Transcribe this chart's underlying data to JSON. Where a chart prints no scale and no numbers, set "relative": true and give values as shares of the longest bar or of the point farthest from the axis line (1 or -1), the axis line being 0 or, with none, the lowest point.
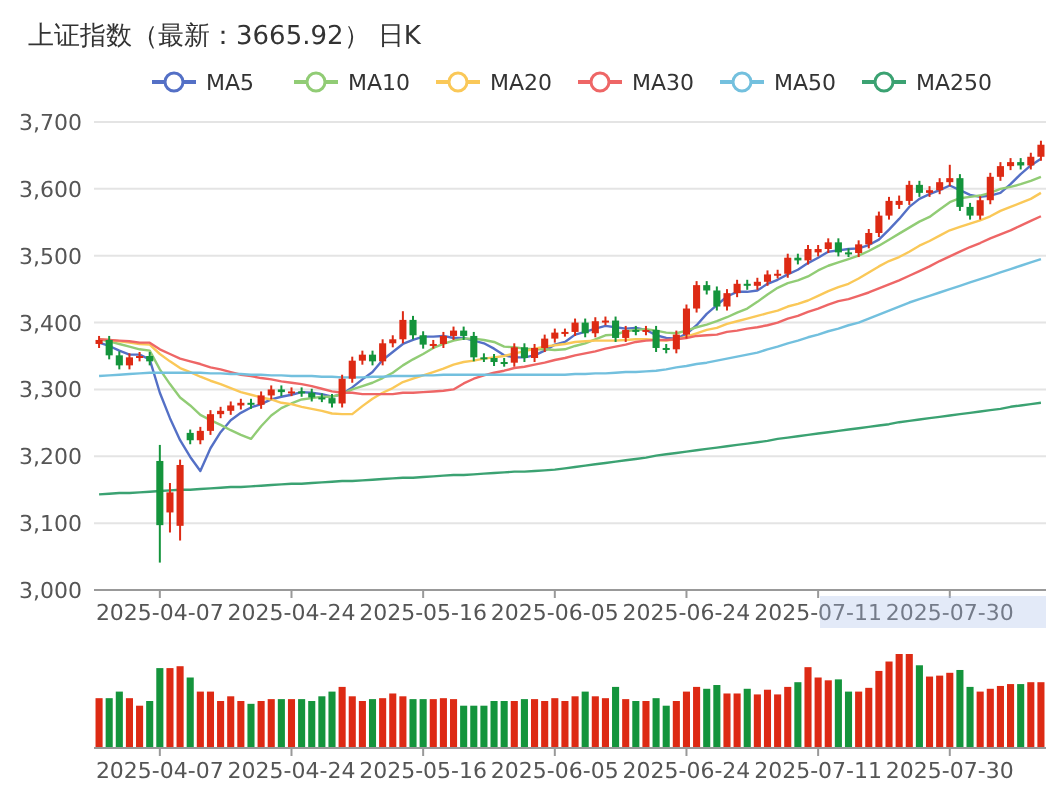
{
  "chart_data": [
    {
      "type": "candlestick",
      "title": "上证指数（最新：3665.92） 日K",
      "legend": "top",
      "grid": "y",
      "categories": [
        null,
        null,
        null,
        null,
        null,
        null,
        "2025-04-07",
        null,
        null,
        null,
        null,
        null,
        null,
        null,
        null,
        null,
        null,
        null,
        null,
        "2025-04-24",
        null,
        null,
        null,
        null,
        null,
        null,
        null,
        null,
        null,
        null,
        null,
        null,
        "2025-05-16",
        null,
        null,
        null,
        null,
        null,
        null,
        null,
        null,
        null,
        null,
        null,
        null,
        "2025-06-05",
        null,
        null,
        null,
        null,
        null,
        null,
        null,
        null,
        null,
        null,
        null,
        null,
        "2025-06-24",
        null,
        null,
        null,
        null,
        null,
        null,
        null,
        null,
        null,
        null,
        null,
        null,
        "2025-07-11",
        null,
        null,
        null,
        null,
        null,
        null,
        null,
        null,
        null,
        null,
        null,
        null,
        "2025-07-30",
        null,
        null,
        null,
        null,
        null,
        null,
        null,
        null,
        null
      ],
      "ylim": [
        3000,
        3700
      ],
      "yticks": [
        {
          "value": 3000,
          "label": "3,000"
        },
        {
          "value": 3100,
          "label": "3,100"
        },
        {
          "value": 3200,
          "label": "3,200"
        },
        {
          "value": 3300,
          "label": "3,300"
        },
        {
          "value": 3400,
          "label": "3,400"
        },
        {
          "value": 3500,
          "label": "3,500"
        },
        {
          "value": 3600,
          "label": "3,600"
        },
        {
          "value": 3700,
          "label": "3,700"
        }
      ],
      "ohlc": [
        [
          3368,
          3380,
          3362,
          3374
        ],
        [
          3374,
          3380,
          3345,
          3351
        ],
        [
          3351,
          3357,
          3330,
          3336
        ],
        [
          3336,
          3354,
          3330,
          3348
        ],
        [
          3348,
          3356,
          3342,
          3350
        ],
        [
          3350,
          3356,
          3336,
          3342
        ],
        [
          3193,
          3217,
          3041,
          3097
        ],
        [
          3116,
          3160,
          3086,
          3146
        ],
        [
          3096,
          3195,
          3074,
          3187
        ],
        [
          3235,
          3240,
          3218,
          3224
        ],
        [
          3224,
          3244,
          3218,
          3238
        ],
        [
          3238,
          3269,
          3232,
          3263
        ],
        [
          3263,
          3274,
          3257,
          3268
        ],
        [
          3268,
          3282,
          3262,
          3276
        ],
        [
          3276,
          3286,
          3270,
          3280
        ],
        [
          3280,
          3286,
          3271,
          3277
        ],
        [
          3277,
          3297,
          3271,
          3291
        ],
        [
          3291,
          3306,
          3285,
          3300
        ],
        [
          3300,
          3306,
          3290,
          3296
        ],
        [
          3296,
          3303,
          3290,
          3297
        ],
        [
          3297,
          3303,
          3289,
          3295
        ],
        [
          3295,
          3301,
          3282,
          3288
        ],
        [
          3288,
          3294,
          3281,
          3287
        ],
        [
          3287,
          3293,
          3273,
          3279
        ],
        [
          3279,
          3322,
          3273,
          3316
        ],
        [
          3316,
          3349,
          3310,
          3343
        ],
        [
          3343,
          3358,
          3337,
          3352
        ],
        [
          3352,
          3358,
          3336,
          3342
        ],
        [
          3342,
          3375,
          3336,
          3369
        ],
        [
          3369,
          3381,
          3363,
          3375
        ],
        [
          3375,
          3417,
          3369,
          3404
        ],
        [
          3404,
          3410,
          3375,
          3381
        ],
        [
          3381,
          3387,
          3361,
          3367
        ],
        [
          3367,
          3374,
          3361,
          3368
        ],
        [
          3368,
          3386,
          3362,
          3380
        ],
        [
          3380,
          3394,
          3374,
          3388
        ],
        [
          3388,
          3394,
          3374,
          3380
        ],
        [
          3380,
          3386,
          3342,
          3348
        ],
        [
          3348,
          3354,
          3341,
          3347
        ],
        [
          3347,
          3353,
          3335,
          3341
        ],
        [
          3341,
          3347,
          3334,
          3340
        ],
        [
          3340,
          3369,
          3334,
          3363
        ],
        [
          3363,
          3369,
          3341,
          3347
        ],
        [
          3347,
          3368,
          3341,
          3362
        ],
        [
          3362,
          3382,
          3356,
          3376
        ],
        [
          3376,
          3391,
          3370,
          3385
        ],
        [
          3385,
          3391,
          3379,
          3386
        ],
        [
          3386,
          3406,
          3380,
          3400
        ],
        [
          3400,
          3406,
          3378,
          3384
        ],
        [
          3384,
          3408,
          3378,
          3402
        ],
        [
          3402,
          3409,
          3396,
          3403
        ],
        [
          3403,
          3409,
          3371,
          3377
        ],
        [
          3377,
          3395,
          3371,
          3389
        ],
        [
          3389,
          3395,
          3381,
          3387
        ],
        [
          3387,
          3395,
          3381,
          3389
        ],
        [
          3389,
          3395,
          3356,
          3362
        ],
        [
          3362,
          3368,
          3354,
          3360
        ],
        [
          3360,
          3388,
          3354,
          3382
        ],
        [
          3382,
          3427,
          3376,
          3421
        ],
        [
          3421,
          3462,
          3415,
          3456
        ],
        [
          3456,
          3462,
          3442,
          3448
        ],
        [
          3448,
          3454,
          3418,
          3424
        ],
        [
          3424,
          3450,
          3418,
          3444
        ],
        [
          3444,
          3464,
          3438,
          3458
        ],
        [
          3458,
          3464,
          3449,
          3455
        ],
        [
          3455,
          3467,
          3449,
          3461
        ],
        [
          3461,
          3478,
          3455,
          3472
        ],
        [
          3472,
          3479,
          3466,
          3473
        ],
        [
          3473,
          3503,
          3467,
          3497
        ],
        [
          3497,
          3503,
          3487,
          3493
        ],
        [
          3493,
          3516,
          3487,
          3510
        ],
        [
          3505,
          3516,
          3499,
          3510
        ],
        [
          3510,
          3526,
          3504,
          3520
        ],
        [
          3520,
          3526,
          3499,
          3505
        ],
        [
          3505,
          3511,
          3498,
          3504
        ],
        [
          3504,
          3523,
          3498,
          3517
        ],
        [
          3517,
          3540,
          3511,
          3534
        ],
        [
          3534,
          3566,
          3528,
          3560
        ],
        [
          3560,
          3588,
          3554,
          3582
        ],
        [
          3576,
          3590,
          3570,
          3582
        ],
        [
          3582,
          3612,
          3576,
          3606
        ],
        [
          3606,
          3612,
          3588,
          3594
        ],
        [
          3594,
          3604,
          3588,
          3598
        ],
        [
          3598,
          3616,
          3592,
          3610
        ],
        [
          3610,
          3636,
          3604,
          3616
        ],
        [
          3616,
          3622,
          3567,
          3573
        ],
        [
          3573,
          3579,
          3554,
          3560
        ],
        [
          3560,
          3589,
          3554,
          3583
        ],
        [
          3583,
          3624,
          3577,
          3618
        ],
        [
          3618,
          3640,
          3612,
          3634
        ],
        [
          3634,
          3646,
          3628,
          3640
        ],
        [
          3640,
          3646,
          3629,
          3635
        ],
        [
          3635,
          3654,
          3629,
          3648
        ],
        [
          3648,
          3672,
          3642,
          3666
        ]
      ],
      "series": [
        {
          "type": "line",
          "name": "MA5",
          "color": "#5470c6",
          "values": [
            3370,
            3365,
            3358,
            3352,
            3352,
            3345,
            3295,
            3257,
            3224,
            3199,
            3178,
            3212,
            3236,
            3254,
            3265,
            3273,
            3278,
            3285,
            3289,
            3292,
            3296,
            3295,
            3293,
            3289,
            3293,
            3303,
            3315,
            3326,
            3344,
            3356,
            3368,
            3374,
            3379,
            3379,
            3380,
            3377,
            3377,
            3373,
            3369,
            3361,
            3351,
            3348,
            3348,
            3351,
            3358,
            3367,
            3371,
            3382,
            3386,
            3391,
            3395,
            3393,
            3391,
            3392,
            3389,
            3381,
            3377,
            3376,
            3383,
            3396,
            3413,
            3426,
            3439,
            3446,
            3446,
            3448,
            3458,
            3464,
            3472,
            3479,
            3489,
            3497,
            3506,
            3508,
            3510,
            3511,
            3516,
            3524,
            3539,
            3555,
            3573,
            3585,
            3592,
            3598,
            3605,
            3598,
            3591,
            3588,
            3590,
            3594,
            3607,
            3622,
            3635,
            3645
          ]
        },
        {
          "type": "line",
          "name": "MA10",
          "color": "#91cc75",
          "values": [
            3375,
            3372,
            3368,
            3364,
            3360,
            3358,
            3330,
            3308,
            3288,
            3276,
            3262,
            3254,
            3247,
            3239,
            3232,
            3226,
            3245,
            3261,
            3272,
            3279,
            3285,
            3287,
            3289,
            3289,
            3293,
            3300,
            3305,
            3310,
            3317,
            3325,
            3336,
            3345,
            3353,
            3362,
            3368,
            3373,
            3376,
            3376,
            3374,
            3371,
            3364,
            3363,
            3361,
            3360,
            3360,
            3359,
            3360,
            3365,
            3369,
            3375,
            3381,
            3382,
            3387,
            3389,
            3390,
            3388,
            3385,
            3384,
            3388,
            3393,
            3397,
            3402,
            3408,
            3415,
            3421,
            3431,
            3442,
            3452,
            3459,
            3463,
            3469,
            3478,
            3485,
            3490,
            3495,
            3500,
            3507,
            3515,
            3524,
            3533,
            3542,
            3551,
            3558,
            3569,
            3580,
            3586,
            3588,
            3590,
            3594,
            3600,
            3603,
            3607,
            3612,
            3618
          ]
        },
        {
          "type": "line",
          "name": "MA20",
          "color": "#fac858",
          "values": [
            3375,
            3374,
            3372,
            3370,
            3368,
            3367,
            3353,
            3342,
            3332,
            3326,
            3319,
            3313,
            3308,
            3302,
            3296,
            3292,
            3288,
            3285,
            3280,
            3278,
            3274,
            3271,
            3268,
            3264,
            3263,
            3263,
            3275,
            3286,
            3295,
            3302,
            3311,
            3316,
            3321,
            3326,
            3331,
            3337,
            3341,
            3343,
            3346,
            3348,
            3350,
            3354,
            3357,
            3361,
            3364,
            3366,
            3368,
            3371,
            3372,
            3373,
            3373,
            3373,
            3374,
            3375,
            3375,
            3374,
            3373,
            3375,
            3379,
            3384,
            3389,
            3392,
            3398,
            3402,
            3406,
            3410,
            3414,
            3418,
            3424,
            3428,
            3433,
            3440,
            3447,
            3453,
            3458,
            3466,
            3475,
            3484,
            3492,
            3498,
            3506,
            3515,
            3522,
            3530,
            3538,
            3543,
            3548,
            3553,
            3559,
            3567,
            3573,
            3579,
            3585,
            3594
          ]
        },
        {
          "type": "line",
          "name": "MA30",
          "color": "#ee6666",
          "values": [
            3375,
            3374,
            3373,
            3372,
            3370,
            3370,
            3360,
            3353,
            3346,
            3342,
            3338,
            3333,
            3330,
            3326,
            3322,
            3320,
            3317,
            3315,
            3312,
            3310,
            3308,
            3305,
            3301,
            3297,
            3295,
            3295,
            3293,
            3293,
            3293,
            3293,
            3295,
            3295,
            3296,
            3297,
            3298,
            3300,
            3309,
            3316,
            3321,
            3325,
            3328,
            3332,
            3334,
            3337,
            3340,
            3344,
            3347,
            3351,
            3354,
            3357,
            3361,
            3364,
            3367,
            3371,
            3373,
            3374,
            3374,
            3375,
            3377,
            3380,
            3381,
            3382,
            3386,
            3388,
            3391,
            3393,
            3396,
            3400,
            3406,
            3410,
            3416,
            3421,
            3427,
            3432,
            3435,
            3440,
            3445,
            3451,
            3457,
            3463,
            3470,
            3477,
            3484,
            3492,
            3499,
            3506,
            3513,
            3519,
            3526,
            3532,
            3538,
            3545,
            3552,
            3559
          ]
        },
        {
          "type": "line",
          "name": "MA50",
          "color": "#73c0de",
          "values": [
            3320,
            3321,
            3322,
            3323,
            3324,
            3325,
            3325,
            3325,
            3325,
            3325,
            3325,
            3324,
            3324,
            3323,
            3323,
            3322,
            3322,
            3321,
            3321,
            3320,
            3320,
            3320,
            3319,
            3319,
            3318,
            3318,
            3318,
            3319,
            3319,
            3320,
            3320,
            3320,
            3321,
            3321,
            3322,
            3322,
            3322,
            3322,
            3322,
            3322,
            3322,
            3322,
            3322,
            3322,
            3322,
            3322,
            3322,
            3323,
            3323,
            3324,
            3324,
            3325,
            3326,
            3326,
            3327,
            3328,
            3330,
            3333,
            3335,
            3338,
            3340,
            3343,
            3346,
            3349,
            3352,
            3355,
            3360,
            3364,
            3369,
            3373,
            3378,
            3382,
            3387,
            3391,
            3396,
            3400,
            3406,
            3412,
            3418,
            3424,
            3430,
            3435,
            3440,
            3445,
            3450,
            3455,
            3460,
            3465,
            3470,
            3475,
            3480,
            3485,
            3490,
            3495
          ]
        },
        {
          "type": "line",
          "name": "MA250",
          "color": "#3ba272",
          "values": [
            3143,
            3144,
            3145,
            3145,
            3146,
            3147,
            3148,
            3149,
            3150,
            3150,
            3151,
            3152,
            3153,
            3154,
            3154,
            3155,
            3156,
            3157,
            3158,
            3159,
            3159,
            3160,
            3161,
            3162,
            3163,
            3163,
            3164,
            3165,
            3166,
            3167,
            3168,
            3168,
            3169,
            3170,
            3171,
            3172,
            3172,
            3173,
            3174,
            3175,
            3176,
            3177,
            3177,
            3178,
            3179,
            3180,
            3182,
            3184,
            3186,
            3188,
            3190,
            3192,
            3194,
            3196,
            3198,
            3201,
            3203,
            3205,
            3207,
            3209,
            3211,
            3213,
            3215,
            3217,
            3219,
            3221,
            3223,
            3226,
            3228,
            3230,
            3232,
            3234,
            3236,
            3238,
            3240,
            3242,
            3244,
            3246,
            3248,
            3251,
            3253,
            3255,
            3257,
            3259,
            3261,
            3263,
            3265,
            3267,
            3269,
            3271,
            3274,
            3276,
            3278,
            3280
          ]
        }
      ]
    },
    {
      "type": "bar",
      "relative": true,
      "categories": [
        null,
        null,
        null,
        null,
        null,
        null,
        "2025-04-07",
        null,
        null,
        null,
        null,
        null,
        null,
        null,
        null,
        null,
        null,
        null,
        null,
        "2025-04-24",
        null,
        null,
        null,
        null,
        null,
        null,
        null,
        null,
        null,
        null,
        null,
        null,
        "2025-05-16",
        null,
        null,
        null,
        null,
        null,
        null,
        null,
        null,
        null,
        null,
        null,
        null,
        "2025-06-05",
        null,
        null,
        null,
        null,
        null,
        null,
        null,
        null,
        null,
        null,
        null,
        null,
        "2025-06-24",
        null,
        null,
        null,
        null,
        null,
        null,
        null,
        null,
        null,
        null,
        null,
        null,
        "2025-07-11",
        null,
        null,
        null,
        null,
        null,
        null,
        null,
        null,
        null,
        null,
        null,
        null,
        "2025-07-30",
        null,
        null,
        null,
        null,
        null,
        null,
        null,
        null,
        null
      ],
      "values": [
        0.53,
        0.53,
        0.6,
        0.53,
        0.45,
        0.5,
        0.85,
        0.85,
        0.87,
        0.75,
        0.6,
        0.6,
        0.5,
        0.55,
        0.5,
        0.47,
        0.5,
        0.52,
        0.52,
        0.52,
        0.52,
        0.5,
        0.55,
        0.6,
        0.65,
        0.55,
        0.5,
        0.52,
        0.53,
        0.58,
        0.55,
        0.52,
        0.52,
        0.52,
        0.53,
        0.52,
        0.45,
        0.45,
        0.45,
        0.5,
        0.5,
        0.5,
        0.52,
        0.52,
        0.5,
        0.53,
        0.5,
        0.55,
        0.6,
        0.55,
        0.53,
        0.65,
        0.52,
        0.5,
        0.5,
        0.53,
        0.45,
        0.5,
        0.6,
        0.65,
        0.63,
        0.67,
        0.58,
        0.58,
        0.63,
        0.57,
        0.62,
        0.57,
        0.65,
        0.7,
        0.86,
        0.75,
        0.72,
        0.73,
        0.6,
        0.6,
        0.64,
        0.82,
        0.92,
        1,
        1,
        0.88,
        0.76,
        0.77,
        0.8,
        0.83,
        0.65,
        0.6,
        0.63,
        0.66,
        0.68,
        0.68,
        0.7,
        0.7
      ],
      "colors": [
        "#dd2a14",
        "#14943c",
        "#14943c",
        "#dd2a14",
        "#dd2a14",
        "#14943c",
        "#14943c",
        "#dd2a14",
        "#dd2a14",
        "#14943c",
        "#dd2a14",
        "#dd2a14",
        "#dd2a14",
        "#dd2a14",
        "#dd2a14",
        "#14943c",
        "#dd2a14",
        "#dd2a14",
        "#14943c",
        "#dd2a14",
        "#14943c",
        "#14943c",
        "#14943c",
        "#14943c",
        "#dd2a14",
        "#dd2a14",
        "#dd2a14",
        "#14943c",
        "#dd2a14",
        "#dd2a14",
        "#dd2a14",
        "#14943c",
        "#14943c",
        "#dd2a14",
        "#dd2a14",
        "#dd2a14",
        "#14943c",
        "#14943c",
        "#14943c",
        "#14943c",
        "#14943c",
        "#dd2a14",
        "#14943c",
        "#dd2a14",
        "#dd2a14",
        "#dd2a14",
        "#dd2a14",
        "#dd2a14",
        "#14943c",
        "#dd2a14",
        "#dd2a14",
        "#14943c",
        "#dd2a14",
        "#14943c",
        "#dd2a14",
        "#14943c",
        "#14943c",
        "#dd2a14",
        "#dd2a14",
        "#dd2a14",
        "#14943c",
        "#14943c",
        "#dd2a14",
        "#dd2a14",
        "#14943c",
        "#dd2a14",
        "#dd2a14",
        "#dd2a14",
        "#dd2a14",
        "#14943c",
        "#dd2a14",
        "#dd2a14",
        "#dd2a14",
        "#14943c",
        "#14943c",
        "#dd2a14",
        "#dd2a14",
        "#dd2a14",
        "#dd2a14",
        "#dd2a14",
        "#dd2a14",
        "#14943c",
        "#dd2a14",
        "#dd2a14",
        "#dd2a14",
        "#14943c",
        "#14943c",
        "#dd2a14",
        "#dd2a14",
        "#dd2a14",
        "#dd2a14",
        "#14943c",
        "#dd2a14",
        "#dd2a14"
      ]
    }
  ]
}
